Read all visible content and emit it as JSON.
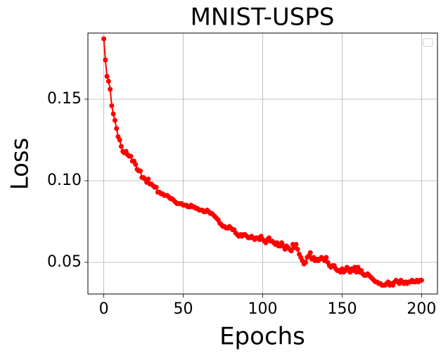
{
  "chart_data": {
    "type": "line",
    "title": "MNIST-USPS",
    "x_label": "Epochs",
    "y_label": "Loss",
    "x": [
      0,
      1,
      2,
      3,
      4,
      5,
      6,
      7,
      8,
      9,
      10,
      11,
      12,
      13,
      14,
      15,
      16,
      17,
      18,
      19,
      20,
      21,
      22,
      23,
      24,
      25,
      26,
      27,
      28,
      29,
      30,
      31,
      32,
      33,
      34,
      35,
      36,
      37,
      38,
      39,
      40,
      41,
      42,
      43,
      44,
      45,
      46,
      47,
      48,
      49,
      50,
      51,
      52,
      53,
      54,
      55,
      56,
      57,
      58,
      59,
      60,
      61,
      62,
      63,
      64,
      65,
      66,
      67,
      68,
      69,
      70,
      71,
      72,
      73,
      74,
      75,
      76,
      77,
      78,
      79,
      80,
      81,
      82,
      83,
      84,
      85,
      86,
      87,
      88,
      89,
      90,
      91,
      92,
      93,
      94,
      95,
      96,
      97,
      98,
      99,
      100,
      101,
      102,
      103,
      104,
      105,
      106,
      107,
      108,
      109,
      110,
      111,
      112,
      113,
      114,
      115,
      116,
      117,
      118,
      119,
      120,
      121,
      122,
      123,
      124,
      125,
      126,
      127,
      128,
      129,
      130,
      131,
      132,
      133,
      134,
      135,
      136,
      137,
      138,
      139,
      140,
      141,
      142,
      143,
      144,
      145,
      146,
      147,
      148,
      149,
      150,
      151,
      152,
      153,
      154,
      155,
      156,
      157,
      158,
      159,
      160,
      161,
      162,
      163,
      164,
      165,
      166,
      167,
      168,
      169,
      170,
      171,
      172,
      173,
      174,
      175,
      176,
      177,
      178,
      179,
      180,
      181,
      182,
      183,
      184,
      185,
      186,
      187,
      188,
      189,
      190,
      191,
      192,
      193,
      194,
      195,
      196,
      197,
      198,
      199,
      200
    ],
    "values": [
      0.187,
      0.174,
      0.164,
      0.161,
      0.156,
      0.146,
      0.141,
      0.137,
      0.132,
      0.127,
      0.125,
      0.121,
      0.118,
      0.117,
      0.118,
      0.116,
      0.115,
      0.115,
      0.112,
      0.112,
      0.11,
      0.107,
      0.106,
      0.106,
      0.102,
      0.102,
      0.101,
      0.099,
      0.101,
      0.098,
      0.098,
      0.097,
      0.096,
      0.096,
      0.093,
      0.093,
      0.092,
      0.092,
      0.091,
      0.091,
      0.091,
      0.09,
      0.089,
      0.089,
      0.088,
      0.087,
      0.086,
      0.086,
      0.086,
      0.086,
      0.085,
      0.085,
      0.085,
      0.084,
      0.084,
      0.085,
      0.084,
      0.084,
      0.083,
      0.083,
      0.082,
      0.082,
      0.082,
      0.081,
      0.081,
      0.082,
      0.081,
      0.08,
      0.08,
      0.079,
      0.078,
      0.077,
      0.076,
      0.074,
      0.073,
      0.072,
      0.072,
      0.071,
      0.071,
      0.072,
      0.071,
      0.07,
      0.07,
      0.068,
      0.067,
      0.066,
      0.067,
      0.066,
      0.067,
      0.067,
      0.066,
      0.065,
      0.065,
      0.066,
      0.065,
      0.064,
      0.065,
      0.065,
      0.064,
      0.066,
      0.064,
      0.063,
      0.062,
      0.064,
      0.065,
      0.063,
      0.063,
      0.062,
      0.061,
      0.062,
      0.06,
      0.06,
      0.062,
      0.06,
      0.058,
      0.06,
      0.059,
      0.058,
      0.057,
      0.061,
      0.059,
      0.061,
      0.058,
      0.055,
      0.053,
      0.051,
      0.049,
      0.05,
      0.053,
      0.054,
      0.056,
      0.052,
      0.053,
      0.051,
      0.052,
      0.051,
      0.052,
      0.053,
      0.052,
      0.051,
      0.053,
      0.05,
      0.048,
      0.047,
      0.048,
      0.048,
      0.046,
      0.045,
      0.045,
      0.044,
      0.046,
      0.044,
      0.045,
      0.047,
      0.046,
      0.044,
      0.046,
      0.045,
      0.047,
      0.044,
      0.047,
      0.044,
      0.045,
      0.043,
      0.042,
      0.042,
      0.043,
      0.042,
      0.041,
      0.04,
      0.039,
      0.038,
      0.038,
      0.037,
      0.037,
      0.036,
      0.036,
      0.036,
      0.037,
      0.038,
      0.036,
      0.037,
      0.036,
      0.038,
      0.039,
      0.038,
      0.037,
      0.039,
      0.038,
      0.037,
      0.038,
      0.037,
      0.038,
      0.038,
      0.039,
      0.038,
      0.038,
      0.039,
      0.038,
      0.039,
      0.039
    ],
    "color": "#ff0000",
    "xlim": [
      -10,
      210
    ],
    "ylim": [
      0.0306,
      0.1905
    ],
    "xticks": [
      0,
      50,
      100,
      150,
      200
    ],
    "yticks": [
      0.05,
      {
        "value": 0.1,
        "label": "0.10"
      },
      0.15
    ],
    "grid": true
  }
}
